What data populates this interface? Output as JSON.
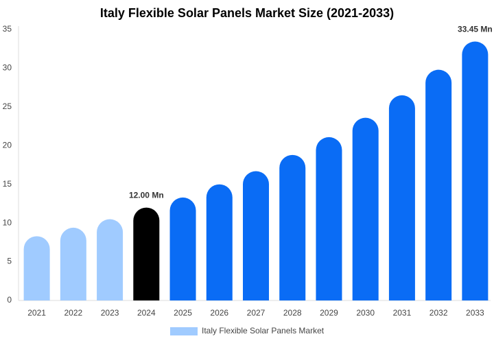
{
  "chart_data": {
    "type": "bar",
    "title": "Italy Flexible Solar Panels Market Size (2021-2033)",
    "categories": [
      "2021",
      "2022",
      "2023",
      "2024",
      "2025",
      "2026",
      "2027",
      "2028",
      "2029",
      "2030",
      "2031",
      "2032",
      "2033"
    ],
    "series": [
      {
        "name": "Italy Flexible Solar Panels Market",
        "color": "#a0cbff",
        "colors": [
          "#a0cbff",
          "#a0cbff",
          "#a0cbff",
          "#000000",
          "#0a6cf5",
          "#0a6cf5",
          "#0a6cf5",
          "#0a6cf5",
          "#0a6cf5",
          "#0a6cf5",
          "#0a6cf5",
          "#0a6cf5",
          "#0a6cf5"
        ],
        "values": [
          8.3,
          9.4,
          10.5,
          12.0,
          13.3,
          15.0,
          16.7,
          18.8,
          21.1,
          23.6,
          26.5,
          29.8,
          33.45
        ],
        "value_labels": [
          null,
          null,
          null,
          "12.00 Mn",
          null,
          null,
          null,
          null,
          null,
          null,
          null,
          null,
          "33.45 Mn"
        ]
      }
    ],
    "ylim": [
      0,
      35
    ],
    "yticks": [
      0,
      5,
      10,
      15,
      20,
      25,
      30,
      35
    ],
    "grid": false
  }
}
